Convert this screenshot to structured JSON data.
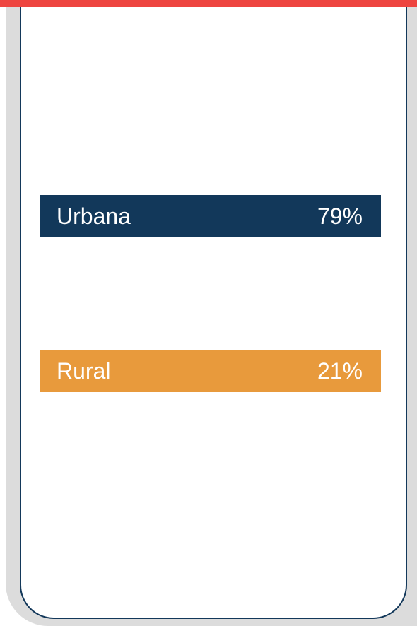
{
  "items": [
    {
      "label": "Urbana",
      "value": "79%"
    },
    {
      "label": "Rural",
      "value": "21%"
    }
  ]
}
